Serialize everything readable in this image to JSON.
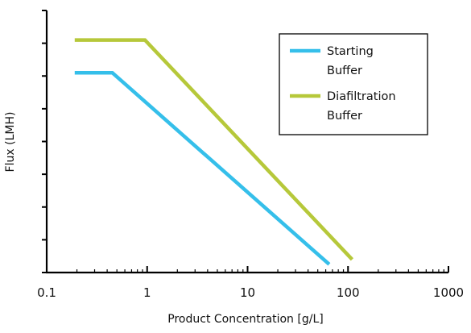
{
  "chart_data": {
    "type": "line",
    "title": "",
    "xlabel": "Product Concentration [g/L]",
    "ylabel": "Flux (LMH)",
    "x_scale": "log",
    "xlim": [
      0.1,
      1000
    ],
    "x_ticks": [
      {
        "value": 0.1,
        "label": "0.1"
      },
      {
        "value": 1,
        "label": "1"
      },
      {
        "value": 10,
        "label": "10"
      },
      {
        "value": 100,
        "label": "100"
      },
      {
        "value": 1000,
        "label": "1000"
      }
    ],
    "ylim": [
      0,
      8
    ],
    "y_ticks": [
      0,
      1,
      2,
      3,
      4,
      5,
      6,
      7,
      8
    ],
    "y_tick_labels_shown": false,
    "grid": false,
    "legend_position": "top-right",
    "legend_border": true,
    "series": [
      {
        "name": "Starting Buffer",
        "legend_lines": [
          "Starting",
          "Buffer"
        ],
        "color": "#35bfea",
        "points": [
          {
            "x": 0.19,
            "y": 6.1
          },
          {
            "x": 0.45,
            "y": 6.1
          },
          {
            "x": 65,
            "y": 0.25
          }
        ]
      },
      {
        "name": "Diafiltration Buffer",
        "legend_lines": [
          "Diafiltration",
          "Buffer"
        ],
        "color": "#b6c83a",
        "points": [
          {
            "x": 0.19,
            "y": 7.1
          },
          {
            "x": 0.95,
            "y": 7.1
          },
          {
            "x": 110,
            "y": 0.4
          }
        ]
      }
    ]
  }
}
